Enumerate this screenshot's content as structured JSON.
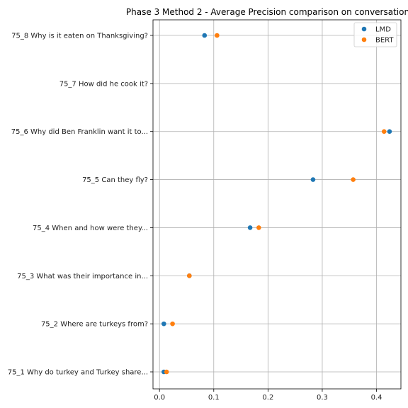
{
  "chart_data": {
    "type": "scatter",
    "title": "Phase 3 Method 2 - Average Precision comparison on conversation",
    "xlabel": "",
    "ylabel": "",
    "xlim": [
      -0.012,
      0.445
    ],
    "xticks": [
      "0.0",
      "0.1",
      "0.2",
      "0.3",
      "0.4"
    ],
    "xtick_values": [
      0.0,
      0.1,
      0.2,
      0.3,
      0.4
    ],
    "grid": true,
    "legend_position": "top-right",
    "categories": [
      "75_1 Why do turkey and Turkey share...",
      "75_2 Where are turkeys from?",
      "75_3 What was their importance in...",
      "75_4 When and how were they...",
      "75_5 Can they fly?",
      "75_6 Why did Ben Franklin want it to...",
      "75_7 How did he cook it?",
      "75_8 Why is it eaten on Thanksgiving?"
    ],
    "series": [
      {
        "name": "LMD",
        "color": "#1f77b4",
        "values": [
          0.008,
          0.008,
          0.055,
          0.167,
          0.283,
          0.424,
          null,
          0.083
        ]
      },
      {
        "name": "BERT",
        "color": "#ff7f0e",
        "values": [
          0.013,
          0.024,
          0.055,
          0.183,
          0.357,
          0.414,
          null,
          0.106
        ]
      }
    ]
  }
}
